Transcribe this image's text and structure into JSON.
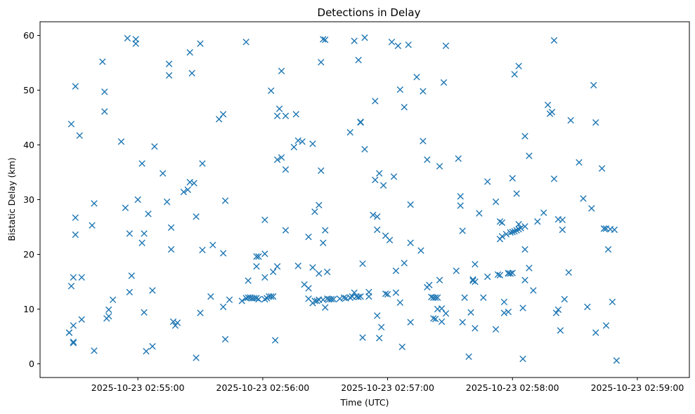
{
  "chart_data": {
    "type": "scatter",
    "title": "Detections in Delay",
    "xlabel": "Time (UTC)",
    "ylabel": "Bistatic Delay (km)",
    "marker": "x",
    "color": "#1f77b4",
    "grid": false,
    "legend": "none",
    "xlim": [
      "2025-10-23 02:54:13",
      "2025-10-23 02:59:25"
    ],
    "ylim": [
      -2.5,
      62.5
    ],
    "xticks": [
      "2025-10-23 02:55:00",
      "2025-10-23 02:56:00",
      "2025-10-23 02:57:00",
      "2025-10-23 02:58:00",
      "2025-10-23 02:59:00"
    ],
    "yticks": [
      0,
      10,
      20,
      30,
      40,
      50,
      60
    ],
    "points": [
      [
        "2025-10-23 02:54:27",
        5.7
      ],
      [
        "2025-10-23 02:54:27",
        5.7
      ],
      [
        "2025-10-23 02:54:28",
        43.8
      ],
      [
        "2025-10-23 02:54:28",
        14.2
      ],
      [
        "2025-10-23 02:54:29",
        15.8
      ],
      [
        "2025-10-23 02:54:29",
        7.0
      ],
      [
        "2025-10-23 02:54:29",
        4.0
      ],
      [
        "2025-10-23 02:54:29",
        3.8
      ],
      [
        "2025-10-23 02:54:30",
        50.7
      ],
      [
        "2025-10-23 02:54:30",
        26.7
      ],
      [
        "2025-10-23 02:54:30",
        23.6
      ],
      [
        "2025-10-23 02:54:32",
        41.7
      ],
      [
        "2025-10-23 02:54:33",
        15.8
      ],
      [
        "2025-10-23 02:54:33",
        8.1
      ],
      [
        "2025-10-23 02:54:38",
        25.3
      ],
      [
        "2025-10-23 02:54:39",
        29.3
      ],
      [
        "2025-10-23 02:54:39",
        2.4
      ],
      [
        "2025-10-23 02:54:43",
        55.2
      ],
      [
        "2025-10-23 02:54:44",
        49.7
      ],
      [
        "2025-10-23 02:54:44",
        46.1
      ],
      [
        "2025-10-23 02:54:45",
        8.3
      ],
      [
        "2025-10-23 02:54:46",
        8.7
      ],
      [
        "2025-10-23 02:54:46",
        9.9
      ],
      [
        "2025-10-23 02:54:48",
        11.7
      ],
      [
        "2025-10-23 02:54:52",
        40.6
      ],
      [
        "2025-10-23 02:54:54",
        28.5
      ],
      [
        "2025-10-23 02:54:55",
        59.5
      ],
      [
        "2025-10-23 02:54:56",
        23.8
      ],
      [
        "2025-10-23 02:54:56",
        13.1
      ],
      [
        "2025-10-23 02:54:57",
        16.1
      ],
      [
        "2025-10-23 02:54:59",
        58.5
      ],
      [
        "2025-10-23 02:54:59",
        59.3
      ],
      [
        "2025-10-23 02:55:00",
        30.0
      ],
      [
        "2025-10-23 02:55:02",
        36.6
      ],
      [
        "2025-10-23 02:55:02",
        22.1
      ],
      [
        "2025-10-23 02:55:03",
        23.8
      ],
      [
        "2025-10-23 02:55:03",
        9.4
      ],
      [
        "2025-10-23 02:55:04",
        2.3
      ],
      [
        "2025-10-23 02:55:05",
        27.4
      ],
      [
        "2025-10-23 02:55:07",
        13.4
      ],
      [
        "2025-10-23 02:55:07",
        3.2
      ],
      [
        "2025-10-23 02:55:08",
        39.7
      ],
      [
        "2025-10-23 02:55:12",
        34.8
      ],
      [
        "2025-10-23 02:55:14",
        29.6
      ],
      [
        "2025-10-23 02:55:15",
        54.8
      ],
      [
        "2025-10-23 02:55:15",
        52.7
      ],
      [
        "2025-10-23 02:55:16",
        24.9
      ],
      [
        "2025-10-23 02:55:16",
        20.9
      ],
      [
        "2025-10-23 02:55:17",
        7.7
      ],
      [
        "2025-10-23 02:55:18",
        7.0
      ],
      [
        "2025-10-23 02:55:19",
        7.5
      ],
      [
        "2025-10-23 02:55:22",
        31.4
      ],
      [
        "2025-10-23 02:55:24",
        31.8
      ],
      [
        "2025-10-23 02:55:25",
        56.9
      ],
      [
        "2025-10-23 02:55:25",
        33.2
      ],
      [
        "2025-10-23 02:55:26",
        53.1
      ],
      [
        "2025-10-23 02:55:27",
        33.0
      ],
      [
        "2025-10-23 02:55:28",
        26.9
      ],
      [
        "2025-10-23 02:55:28",
        1.1
      ],
      [
        "2025-10-23 02:55:30",
        58.5
      ],
      [
        "2025-10-23 02:55:30",
        9.3
      ],
      [
        "2025-10-23 02:55:31",
        36.6
      ],
      [
        "2025-10-23 02:55:31",
        20.8
      ],
      [
        "2025-10-23 02:55:35",
        12.3
      ],
      [
        "2025-10-23 02:55:36",
        21.7
      ],
      [
        "2025-10-23 02:55:39",
        44.7
      ],
      [
        "2025-10-23 02:55:41",
        45.6
      ],
      [
        "2025-10-23 02:55:41",
        20.2
      ],
      [
        "2025-10-23 02:55:41",
        10.4
      ],
      [
        "2025-10-23 02:55:42",
        29.8
      ],
      [
        "2025-10-23 02:55:42",
        4.5
      ],
      [
        "2025-10-23 02:55:44",
        11.7
      ],
      [
        "2025-10-23 02:55:50",
        11.5
      ],
      [
        "2025-10-23 02:55:52",
        58.8
      ],
      [
        "2025-10-23 02:55:52",
        12.0
      ],
      [
        "2025-10-23 02:55:53",
        15.2
      ],
      [
        "2025-10-23 02:55:53",
        12.1
      ],
      [
        "2025-10-23 02:55:54",
        12.1
      ],
      [
        "2025-10-23 02:55:55",
        12.0
      ],
      [
        "2025-10-23 02:55:56",
        12.0
      ],
      [
        "2025-10-23 02:55:57",
        19.6
      ],
      [
        "2025-10-23 02:55:57",
        17.8
      ],
      [
        "2025-10-23 02:55:57",
        12.0
      ],
      [
        "2025-10-23 02:55:58",
        11.8
      ],
      [
        "2025-10-23 02:55:58",
        19.6
      ],
      [
        "2025-10-23 02:56:01",
        26.3
      ],
      [
        "2025-10-23 02:56:01",
        20.1
      ],
      [
        "2025-10-23 02:56:01",
        15.8
      ],
      [
        "2025-10-23 02:56:01",
        11.8
      ],
      [
        "2025-10-23 02:56:02",
        12.0
      ],
      [
        "2025-10-23 02:56:03",
        12.3
      ],
      [
        "2025-10-23 02:56:04",
        49.9
      ],
      [
        "2025-10-23 02:56:04",
        12.3
      ],
      [
        "2025-10-23 02:56:05",
        16.8
      ],
      [
        "2025-10-23 02:56:05",
        12.3
      ],
      [
        "2025-10-23 02:56:06",
        4.3
      ],
      [
        "2025-10-23 02:56:07",
        17.8
      ],
      [
        "2025-10-23 02:56:07",
        45.3
      ],
      [
        "2025-10-23 02:56:07",
        37.3
      ],
      [
        "2025-10-23 02:56:08",
        46.6
      ],
      [
        "2025-10-23 02:56:09",
        53.5
      ],
      [
        "2025-10-23 02:56:09",
        37.7
      ],
      [
        "2025-10-23 02:56:11",
        45.3
      ],
      [
        "2025-10-23 02:56:11",
        35.5
      ],
      [
        "2025-10-23 02:56:11",
        24.4
      ],
      [
        "2025-10-23 02:56:15",
        39.6
      ],
      [
        "2025-10-23 02:56:16",
        45.6
      ],
      [
        "2025-10-23 02:56:17",
        17.9
      ],
      [
        "2025-10-23 02:56:17",
        40.8
      ],
      [
        "2025-10-23 02:56:19",
        40.6
      ],
      [
        "2025-10-23 02:56:20",
        14.5
      ],
      [
        "2025-10-23 02:56:22",
        11.9
      ],
      [
        "2025-10-23 02:56:22",
        23.2
      ],
      [
        "2025-10-23 02:56:22",
        13.8
      ],
      [
        "2025-10-23 02:56:24",
        40.2
      ],
      [
        "2025-10-23 02:56:24",
        17.6
      ],
      [
        "2025-10-23 02:56:24",
        11.1
      ],
      [
        "2025-10-23 02:56:25",
        11.5
      ],
      [
        "2025-10-23 02:56:25",
        27.8
      ],
      [
        "2025-10-23 02:56:26",
        11.5
      ],
      [
        "2025-10-23 02:56:27",
        29.0
      ],
      [
        "2025-10-23 02:56:27",
        16.5
      ],
      [
        "2025-10-23 02:56:27",
        11.7
      ],
      [
        "2025-10-23 02:56:28",
        55.1
      ],
      [
        "2025-10-23 02:56:28",
        35.3
      ],
      [
        "2025-10-23 02:56:29",
        59.3
      ],
      [
        "2025-10-23 02:56:29",
        22.1
      ],
      [
        "2025-10-23 02:56:29",
        11.7
      ],
      [
        "2025-10-23 02:56:30",
        59.2
      ],
      [
        "2025-10-23 02:56:30",
        24.4
      ],
      [
        "2025-10-23 02:56:30",
        10.3
      ],
      [
        "2025-10-23 02:56:31",
        11.9
      ],
      [
        "2025-10-23 02:56:31",
        16.8
      ],
      [
        "2025-10-23 02:56:32",
        11.8
      ],
      [
        "2025-10-23 02:56:33",
        11.8
      ],
      [
        "2025-10-23 02:56:34",
        11.8
      ],
      [
        "2025-10-23 02:56:37",
        11.9
      ],
      [
        "2025-10-23 02:56:39",
        12.1
      ],
      [
        "2025-10-23 02:56:40",
        12.0
      ],
      [
        "2025-10-23 02:56:42",
        42.3
      ],
      [
        "2025-10-23 02:56:42",
        12.1
      ],
      [
        "2025-10-23 02:56:43",
        12.3
      ],
      [
        "2025-10-23 02:56:44",
        59.0
      ],
      [
        "2025-10-23 02:56:44",
        13.0
      ],
      [
        "2025-10-23 02:56:45",
        12.3
      ],
      [
        "2025-10-23 02:56:46",
        55.5
      ],
      [
        "2025-10-23 02:56:46",
        12.2
      ],
      [
        "2025-10-23 02:56:47",
        44.2
      ],
      [
        "2025-10-23 02:56:47",
        44.1
      ],
      [
        "2025-10-23 02:56:47",
        12.3
      ],
      [
        "2025-10-23 02:56:48",
        18.3
      ],
      [
        "2025-10-23 02:56:48",
        4.8
      ],
      [
        "2025-10-23 02:56:49",
        59.6
      ],
      [
        "2025-10-23 02:56:49",
        39.2
      ],
      [
        "2025-10-23 02:56:51",
        12.3
      ],
      [
        "2025-10-23 02:56:51",
        13.1
      ],
      [
        "2025-10-23 02:56:53",
        27.2
      ],
      [
        "2025-10-23 02:56:54",
        48.0
      ],
      [
        "2025-10-23 02:56:54",
        33.6
      ],
      [
        "2025-10-23 02:56:55",
        26.9
      ],
      [
        "2025-10-23 02:56:55",
        24.5
      ],
      [
        "2025-10-23 02:56:55",
        8.8
      ],
      [
        "2025-10-23 02:56:56",
        34.8
      ],
      [
        "2025-10-23 02:56:56",
        4.7
      ],
      [
        "2025-10-23 02:56:57",
        6.7
      ],
      [
        "2025-10-23 02:56:58",
        32.6
      ],
      [
        "2025-10-23 02:56:59",
        23.4
      ],
      [
        "2025-10-23 02:56:59",
        12.8
      ],
      [
        "2025-10-23 02:57:00",
        12.7
      ],
      [
        "2025-10-23 02:57:01",
        22.6
      ],
      [
        "2025-10-23 02:57:02",
        58.8
      ],
      [
        "2025-10-23 02:57:03",
        34.2
      ],
      [
        "2025-10-23 02:57:04",
        17.0
      ],
      [
        "2025-10-23 02:57:04",
        13.0
      ],
      [
        "2025-10-23 02:57:05",
        58.1
      ],
      [
        "2025-10-23 02:57:06",
        50.1
      ],
      [
        "2025-10-23 02:57:06",
        11.2
      ],
      [
        "2025-10-23 02:57:07",
        3.1
      ],
      [
        "2025-10-23 02:57:08",
        46.9
      ],
      [
        "2025-10-23 02:57:08",
        18.4
      ],
      [
        "2025-10-23 02:57:10",
        58.3
      ],
      [
        "2025-10-23 02:57:11",
        29.1
      ],
      [
        "2025-10-23 02:57:11",
        22.1
      ],
      [
        "2025-10-23 02:57:11",
        7.6
      ],
      [
        "2025-10-23 02:57:14",
        52.4
      ],
      [
        "2025-10-23 02:57:16",
        20.7
      ],
      [
        "2025-10-23 02:57:17",
        49.8
      ],
      [
        "2025-10-23 02:57:17",
        40.7
      ],
      [
        "2025-10-23 02:57:19",
        37.3
      ],
      [
        "2025-10-23 02:57:19",
        14.0
      ],
      [
        "2025-10-23 02:57:20",
        14.4
      ],
      [
        "2025-10-23 02:57:21",
        12.2
      ],
      [
        "2025-10-23 02:57:22",
        12.1
      ],
      [
        "2025-10-23 02:57:22",
        8.3
      ],
      [
        "2025-10-23 02:57:23",
        12.1
      ],
      [
        "2025-10-23 02:57:23",
        8.2
      ],
      [
        "2025-10-23 02:57:24",
        12.1
      ],
      [
        "2025-10-23 02:57:24",
        10.0
      ],
      [
        "2025-10-23 02:57:25",
        36.1
      ],
      [
        "2025-10-23 02:57:25",
        15.3
      ],
      [
        "2025-10-23 02:57:26",
        10.1
      ],
      [
        "2025-10-23 02:57:26",
        7.7
      ],
      [
        "2025-10-23 02:57:27",
        51.4
      ],
      [
        "2025-10-23 02:57:28",
        58.1
      ],
      [
        "2025-10-23 02:57:28",
        9.2
      ],
      [
        "2025-10-23 02:57:33",
        17.0
      ],
      [
        "2025-10-23 02:57:34",
        37.5
      ],
      [
        "2025-10-23 02:57:35",
        30.6
      ],
      [
        "2025-10-23 02:57:35",
        28.9
      ],
      [
        "2025-10-23 02:57:36",
        24.3
      ],
      [
        "2025-10-23 02:57:36",
        7.6
      ],
      [
        "2025-10-23 02:57:37",
        12.1
      ],
      [
        "2025-10-23 02:57:39",
        1.3
      ],
      [
        "2025-10-23 02:57:40",
        9.4
      ],
      [
        "2025-10-23 02:57:41",
        15.4
      ],
      [
        "2025-10-23 02:57:41",
        15.2
      ],
      [
        "2025-10-23 02:57:42",
        6.5
      ],
      [
        "2025-10-23 02:57:42",
        15.0
      ],
      [
        "2025-10-23 02:57:42",
        18.2
      ],
      [
        "2025-10-23 02:57:44",
        27.5
      ],
      [
        "2025-10-23 02:57:46",
        12.1
      ],
      [
        "2025-10-23 02:57:48",
        15.9
      ],
      [
        "2025-10-23 02:57:48",
        33.3
      ],
      [
        "2025-10-23 02:57:52",
        29.6
      ],
      [
        "2025-10-23 02:57:52",
        6.3
      ],
      [
        "2025-10-23 02:57:53",
        16.3
      ],
      [
        "2025-10-23 02:57:54",
        16.2
      ],
      [
        "2025-10-23 02:57:54",
        26.0
      ],
      [
        "2025-10-23 02:57:54",
        22.8
      ],
      [
        "2025-10-23 02:57:55",
        23.3
      ],
      [
        "2025-10-23 02:57:55",
        25.8
      ],
      [
        "2025-10-23 02:57:56",
        11.3
      ],
      [
        "2025-10-23 02:57:56",
        9.3
      ],
      [
        "2025-10-23 02:57:57",
        23.7
      ],
      [
        "2025-10-23 02:57:58",
        16.5
      ],
      [
        "2025-10-23 02:57:58",
        16.6
      ],
      [
        "2025-10-23 02:57:58",
        9.5
      ],
      [
        "2025-10-23 02:57:59",
        24.0
      ],
      [
        "2025-10-23 02:57:59",
        16.5
      ],
      [
        "2025-10-23 02:58:00",
        33.9
      ],
      [
        "2025-10-23 02:58:00",
        24.1
      ],
      [
        "2025-10-23 02:58:00",
        16.6
      ],
      [
        "2025-10-23 02:58:01",
        52.9
      ],
      [
        "2025-10-23 02:58:01",
        24.2
      ],
      [
        "2025-10-23 02:58:02",
        31.1
      ],
      [
        "2025-10-23 02:58:02",
        24.4
      ],
      [
        "2025-10-23 02:58:03",
        24.6
      ],
      [
        "2025-10-23 02:58:03",
        25.5
      ],
      [
        "2025-10-23 02:58:03",
        54.4
      ],
      [
        "2025-10-23 02:58:04",
        24.8
      ],
      [
        "2025-10-23 02:58:05",
        10.2
      ],
      [
        "2025-10-23 02:58:05",
        0.9
      ],
      [
        "2025-10-23 02:58:06",
        41.6
      ],
      [
        "2025-10-23 02:58:06",
        25.1
      ],
      [
        "2025-10-23 02:58:06",
        20.9
      ],
      [
        "2025-10-23 02:58:06",
        15.3
      ],
      [
        "2025-10-23 02:58:08",
        38.0
      ],
      [
        "2025-10-23 02:58:08",
        17.5
      ],
      [
        "2025-10-23 02:58:10",
        13.4
      ],
      [
        "2025-10-23 02:58:12",
        26.0
      ],
      [
        "2025-10-23 02:58:15",
        27.6
      ],
      [
        "2025-10-23 02:58:17",
        47.3
      ],
      [
        "2025-10-23 02:58:18",
        45.7
      ],
      [
        "2025-10-23 02:58:19",
        46.0
      ],
      [
        "2025-10-23 02:58:20",
        59.1
      ],
      [
        "2025-10-23 02:58:20",
        33.8
      ],
      [
        "2025-10-23 02:58:21",
        9.3
      ],
      [
        "2025-10-23 02:58:22",
        26.4
      ],
      [
        "2025-10-23 02:58:22",
        9.9
      ],
      [
        "2025-10-23 02:58:23",
        6.1
      ],
      [
        "2025-10-23 02:58:24",
        26.3
      ],
      [
        "2025-10-23 02:58:24",
        24.5
      ],
      [
        "2025-10-23 02:58:25",
        11.8
      ],
      [
        "2025-10-23 02:58:27",
        16.7
      ],
      [
        "2025-10-23 02:58:28",
        44.5
      ],
      [
        "2025-10-23 02:58:32",
        36.8
      ],
      [
        "2025-10-23 02:58:34",
        30.2
      ],
      [
        "2025-10-23 02:58:36",
        10.4
      ],
      [
        "2025-10-23 02:58:38",
        28.4
      ],
      [
        "2025-10-23 02:58:39",
        50.9
      ],
      [
        "2025-10-23 02:58:40",
        44.1
      ],
      [
        "2025-10-23 02:58:40",
        5.7
      ],
      [
        "2025-10-23 02:58:43",
        35.7
      ],
      [
        "2025-10-23 02:58:44",
        24.7
      ],
      [
        "2025-10-23 02:58:44",
        24.7
      ],
      [
        "2025-10-23 02:58:45",
        24.7
      ],
      [
        "2025-10-23 02:58:45",
        7.0
      ],
      [
        "2025-10-23 02:58:46",
        20.9
      ],
      [
        "2025-10-23 02:58:47",
        24.6
      ],
      [
        "2025-10-23 02:58:48",
        11.3
      ],
      [
        "2025-10-23 02:58:49",
        24.5
      ],
      [
        "2025-10-23 02:58:50",
        0.6
      ]
    ]
  }
}
